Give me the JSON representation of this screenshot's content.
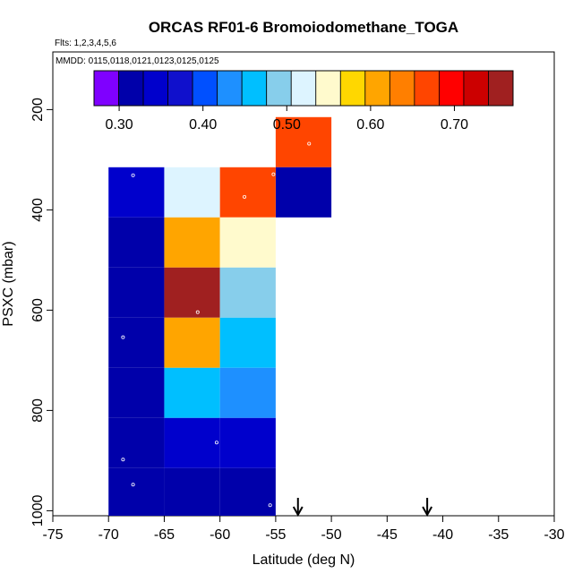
{
  "chart_data": {
    "type": "heatmap",
    "title": "ORCAS RF01-6 Bromoiodomethane_TOGA",
    "flights_label": "Flts: 1,2,3,4,5,6",
    "dates_label": "MMDD: 0115,0118,0121,0123,0125,0125",
    "xlabel": "Latitude (deg N)",
    "ylabel": "PSXC (mbar)",
    "xlim": [
      -75,
      -30
    ],
    "ylim": [
      1010,
      85
    ],
    "x_ticks": [
      -75,
      -70,
      -65,
      -60,
      -55,
      -50,
      -45,
      -40,
      -35,
      -30
    ],
    "y_ticks": [
      200,
      400,
      600,
      800,
      1000
    ],
    "colorbar": {
      "range": [
        0.27,
        0.77
      ],
      "ticks": [
        0.3,
        0.4,
        0.5,
        0.6,
        0.7
      ],
      "tick_labels": [
        "0.30",
        "0.40",
        "0.50",
        "0.60",
        "0.70"
      ],
      "colors": [
        "#7f00ff",
        "#0000aa",
        "#0000cc",
        "#1010cc",
        "#0050ff",
        "#1e90ff",
        "#00bfff",
        "#87ceeb",
        "#ddf4ff",
        "#fffacd",
        "#ffd700",
        "#ffa500",
        "#ff7f00",
        "#ff4500",
        "#ff0000",
        "#cc0000",
        "#a02020"
      ]
    },
    "cells": [
      {
        "lat0": -55,
        "lat1": -50,
        "p0": 215,
        "p1": 315,
        "value": 0.68
      },
      {
        "lat0": -55,
        "lat1": -50,
        "p0": 315,
        "p1": 415,
        "value": 0.31
      },
      {
        "lat0": -70,
        "lat1": -65,
        "p0": 315,
        "p1": 415,
        "value": 0.34
      },
      {
        "lat0": -65,
        "lat1": -60,
        "p0": 315,
        "p1": 415,
        "value": 0.51
      },
      {
        "lat0": -60,
        "lat1": -55,
        "p0": 315,
        "p1": 415,
        "value": 0.68
      },
      {
        "lat0": -70,
        "lat1": -65,
        "p0": 415,
        "p1": 515,
        "value": 0.32
      },
      {
        "lat0": -65,
        "lat1": -60,
        "p0": 415,
        "p1": 515,
        "value": 0.62
      },
      {
        "lat0": -60,
        "lat1": -55,
        "p0": 415,
        "p1": 515,
        "value": 0.55
      },
      {
        "lat0": -70,
        "lat1": -65,
        "p0": 515,
        "p1": 615,
        "value": 0.32
      },
      {
        "lat0": -65,
        "lat1": -60,
        "p0": 515,
        "p1": 615,
        "value": 0.76
      },
      {
        "lat0": -60,
        "lat1": -55,
        "p0": 515,
        "p1": 615,
        "value": 0.49
      },
      {
        "lat0": -70,
        "lat1": -65,
        "p0": 615,
        "p1": 715,
        "value": 0.32
      },
      {
        "lat0": -65,
        "lat1": -60,
        "p0": 615,
        "p1": 715,
        "value": 0.6
      },
      {
        "lat0": -60,
        "lat1": -55,
        "p0": 615,
        "p1": 715,
        "value": 0.45
      },
      {
        "lat0": -70,
        "lat1": -65,
        "p0": 715,
        "p1": 815,
        "value": 0.31
      },
      {
        "lat0": -65,
        "lat1": -60,
        "p0": 715,
        "p1": 815,
        "value": 0.45
      },
      {
        "lat0": -60,
        "lat1": -55,
        "p0": 715,
        "p1": 815,
        "value": 0.42
      },
      {
        "lat0": -70,
        "lat1": -65,
        "p0": 815,
        "p1": 915,
        "value": 0.31
      },
      {
        "lat0": -65,
        "lat1": -60,
        "p0": 815,
        "p1": 915,
        "value": 0.33
      },
      {
        "lat0": -60,
        "lat1": -55,
        "p0": 815,
        "p1": 915,
        "value": 0.35
      },
      {
        "lat0": -70,
        "lat1": -65,
        "p0": 915,
        "p1": 1015,
        "value": 0.31
      },
      {
        "lat0": -65,
        "lat1": -60,
        "p0": 915,
        "p1": 1015,
        "value": 0.31
      },
      {
        "lat0": -60,
        "lat1": -55,
        "p0": 915,
        "p1": 1015,
        "value": 0.31
      }
    ],
    "sample_points": [
      {
        "lat": -52.0,
        "p": 268
      },
      {
        "lat": -67.8,
        "p": 331
      },
      {
        "lat": -57.8,
        "p": 374
      },
      {
        "lat": -55.2,
        "p": 329
      },
      {
        "lat": -62.0,
        "p": 604
      },
      {
        "lat": -68.7,
        "p": 654
      },
      {
        "lat": -60.3,
        "p": 864
      },
      {
        "lat": -68.7,
        "p": 898
      },
      {
        "lat": -67.8,
        "p": 948
      },
      {
        "lat": -55.5,
        "p": 989
      }
    ],
    "arrows": [
      {
        "lat": -53.0
      },
      {
        "lat": -41.4
      }
    ]
  }
}
